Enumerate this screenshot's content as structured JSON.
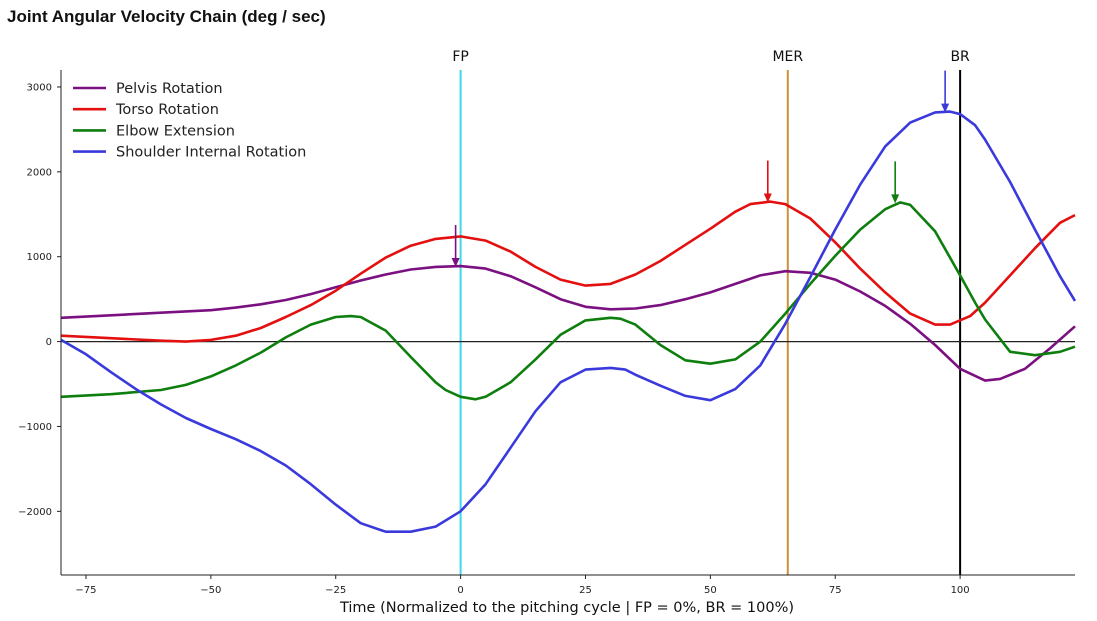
{
  "chart_data": {
    "type": "line",
    "title": "Joint Angular Velocity Chain (deg / sec)",
    "xlabel": "Time (Normalized to the pitching cycle | FP = 0%, BR = 100%)",
    "ylabel": "",
    "xlim": [
      -80,
      123
    ],
    "ylim": [
      -2750,
      3200
    ],
    "xticks": [
      -75,
      -50,
      -25,
      0,
      25,
      50,
      75,
      100
    ],
    "yticks": [
      -2000,
      -1000,
      0,
      1000,
      2000,
      3000
    ],
    "grid": false,
    "legend_position": "top-left",
    "zero_line": true,
    "events": [
      {
        "label": "FP",
        "x": 0,
        "color": "#3fd8e6"
      },
      {
        "label": "MER",
        "x": 65.5,
        "color": "#c9923a"
      },
      {
        "label": "BR",
        "x": 100,
        "color": "#000000"
      }
    ],
    "series": [
      {
        "name": "Pelvis Rotation",
        "color": "#7b1080",
        "x": [
          -80,
          -70,
          -60,
          -50,
          -45,
          -40,
          -35,
          -30,
          -25,
          -20,
          -15,
          -10,
          -5,
          0,
          5,
          10,
          15,
          20,
          25,
          30,
          35,
          40,
          45,
          50,
          55,
          60,
          65,
          70,
          75,
          80,
          85,
          90,
          95,
          100,
          105,
          108,
          113,
          118,
          123
        ],
        "values": [
          280,
          310,
          340,
          370,
          400,
          440,
          490,
          560,
          640,
          720,
          790,
          850,
          880,
          890,
          860,
          770,
          640,
          500,
          410,
          380,
          390,
          430,
          500,
          580,
          680,
          780,
          830,
          810,
          730,
          590,
          420,
          210,
          -40,
          -320,
          -460,
          -440,
          -320,
          -80,
          180
        ],
        "peak_marker": {
          "x": -1,
          "y": 890
        }
      },
      {
        "name": "Torso Rotation",
        "color": "#e41010",
        "x": [
          -80,
          -70,
          -60,
          -55,
          -50,
          -45,
          -40,
          -35,
          -30,
          -25,
          -20,
          -15,
          -10,
          -5,
          0,
          5,
          10,
          15,
          20,
          25,
          30,
          35,
          40,
          45,
          50,
          55,
          58,
          62,
          65,
          70,
          75,
          80,
          85,
          90,
          95,
          98,
          102,
          105,
          110,
          115,
          120,
          123
        ],
        "values": [
          70,
          40,
          10,
          0,
          20,
          70,
          160,
          290,
          430,
          600,
          800,
          990,
          1130,
          1210,
          1240,
          1190,
          1060,
          880,
          730,
          660,
          680,
          790,
          950,
          1140,
          1330,
          1530,
          1620,
          1650,
          1620,
          1450,
          1170,
          860,
          580,
          330,
          200,
          200,
          300,
          460,
          780,
          1100,
          1400,
          1490
        ],
        "peak_marker": {
          "x": 61.5,
          "y": 1650
        }
      },
      {
        "name": "Elbow Extension",
        "color": "#0e7f0e",
        "x": [
          -80,
          -70,
          -60,
          -55,
          -50,
          -45,
          -40,
          -35,
          -30,
          -25,
          -22,
          -20,
          -15,
          -10,
          -5,
          -3,
          0,
          3,
          5,
          10,
          15,
          20,
          25,
          30,
          32,
          35,
          40,
          45,
          50,
          55,
          60,
          65,
          70,
          75,
          80,
          85,
          88,
          90,
          95,
          100,
          103,
          105,
          110,
          115,
          120,
          123
        ],
        "values": [
          -650,
          -620,
          -570,
          -510,
          -410,
          -280,
          -130,
          50,
          200,
          290,
          300,
          290,
          130,
          -180,
          -480,
          -570,
          -650,
          -680,
          -650,
          -480,
          -210,
          80,
          250,
          280,
          270,
          200,
          -40,
          -220,
          -260,
          -210,
          0,
          330,
          680,
          1010,
          1320,
          1560,
          1640,
          1610,
          1300,
          780,
          460,
          260,
          -120,
          -160,
          -120,
          -60
        ],
        "peak_marker": {
          "x": 87,
          "y": 1640
        }
      },
      {
        "name": "Shoulder Internal Rotation",
        "color": "#3a3adc",
        "x": [
          -80,
          -75,
          -70,
          -65,
          -60,
          -55,
          -50,
          -45,
          -40,
          -35,
          -30,
          -25,
          -20,
          -15,
          -10,
          -5,
          0,
          5,
          10,
          15,
          20,
          25,
          30,
          33,
          35,
          40,
          45,
          50,
          55,
          60,
          65,
          70,
          75,
          80,
          85,
          90,
          95,
          98,
          100,
          103,
          105,
          110,
          115,
          120,
          123
        ],
        "values": [
          20,
          -150,
          -360,
          -560,
          -740,
          -900,
          -1030,
          -1150,
          -1290,
          -1460,
          -1680,
          -1920,
          -2140,
          -2240,
          -2240,
          -2180,
          -2000,
          -1680,
          -1250,
          -820,
          -480,
          -330,
          -310,
          -330,
          -390,
          -520,
          -640,
          -690,
          -560,
          -280,
          210,
          760,
          1320,
          1850,
          2300,
          2580,
          2700,
          2710,
          2680,
          2550,
          2380,
          1880,
          1320,
          770,
          480
        ],
        "peak_marker": {
          "x": 97,
          "y": 2710
        }
      }
    ]
  }
}
